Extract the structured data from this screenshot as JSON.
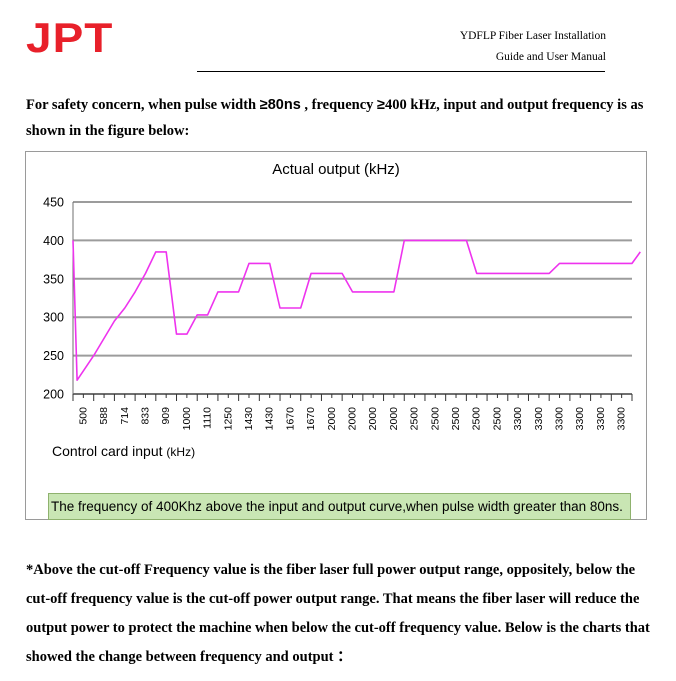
{
  "header": {
    "logo_text": "JPT",
    "title_line1": "YDFLP Fiber Laser Installation",
    "title_line2": "Guide and User Manual"
  },
  "intro": {
    "part1": "For safety concern, when pulse width ",
    "pulse_condition": "≥80ns",
    "part2": " , frequency ",
    "freq_symbol": "≥",
    "part3": "400 kHz, input and output frequency is as shown in the figure below:"
  },
  "chart_data": {
    "type": "line",
    "title": "Actual output (kHz)",
    "xlabel": "Control card input",
    "xlabel_unit": "(kHz)",
    "ylabel": "",
    "ylim": [
      200,
      450
    ],
    "yticks": [
      "450",
      "400",
      "350",
      "300",
      "250",
      "200"
    ],
    "grid": true,
    "series_color": "#ee33ee",
    "categories": [
      "500",
      "588",
      "714",
      "833",
      "909",
      "1000",
      "1110",
      "1250",
      "1430",
      "1430",
      "1670",
      "1670",
      "2000",
      "2000",
      "2000",
      "2000",
      "2500",
      "2500",
      "2500",
      "2500",
      "2500",
      "3300",
      "3300",
      "3300",
      "3300",
      "3300",
      "3300"
    ],
    "series": [
      {
        "name": "Actual output",
        "points": [
          [
            0,
            400
          ],
          [
            0.2,
            218
          ],
          [
            1,
            250
          ],
          [
            2,
            295
          ],
          [
            2.5,
            312
          ],
          [
            3,
            333
          ],
          [
            3.5,
            357
          ],
          [
            4,
            385
          ],
          [
            4.5,
            385
          ],
          [
            5,
            278
          ],
          [
            5.5,
            278
          ],
          [
            6,
            303
          ],
          [
            6.5,
            303
          ],
          [
            7,
            333
          ],
          [
            8,
            333
          ],
          [
            8.5,
            370
          ],
          [
            9.5,
            370
          ],
          [
            10,
            312
          ],
          [
            11,
            312
          ],
          [
            11.5,
            357
          ],
          [
            13,
            357
          ],
          [
            13.5,
            333
          ],
          [
            15.5,
            333
          ],
          [
            16,
            400
          ],
          [
            19,
            400
          ],
          [
            19.5,
            357
          ],
          [
            23,
            357
          ],
          [
            23.5,
            370
          ],
          [
            27,
            370
          ],
          [
            27.4,
            385
          ]
        ]
      }
    ]
  },
  "caption": "The frequency of 400Khz above the input and output curve,when pulse width greater than 80ns.",
  "footer_text": "*Above the cut-off Frequency value is the fiber laser full power output range, oppositely, below the cut-off frequency value is the cut-off power output range. That means the fiber laser will reduce the output power to protect the machine when below the cut-off frequency value. Below is the charts that showed the change between frequency and output ："
}
